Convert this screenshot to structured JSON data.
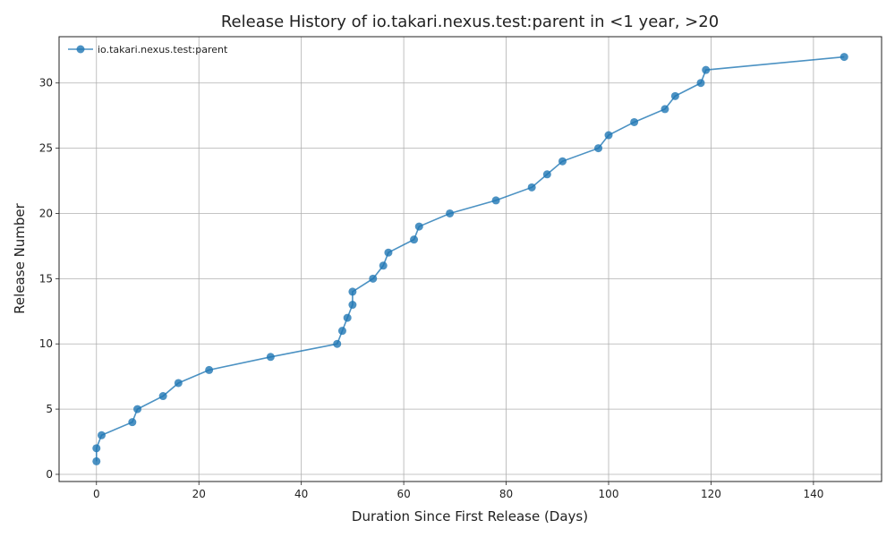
{
  "chart_data": {
    "type": "line",
    "title": "Release History of io.takari.nexus.test:parent in <1 year, >20",
    "xlabel": "Duration Since First Release (Days)",
    "ylabel": "Release Number",
    "xlim": [
      -7.3,
      153.3
    ],
    "ylim": [
      -0.55,
      33.55
    ],
    "xticks": [
      0,
      20,
      40,
      60,
      80,
      100,
      120,
      140
    ],
    "yticks": [
      0,
      5,
      10,
      15,
      20,
      25,
      30
    ],
    "grid": true,
    "legend_position": "top-left",
    "series": [
      {
        "name": "io.takari.nexus.test:parent",
        "color": "#1f77b4",
        "marker": "circle",
        "x": [
          0,
          0,
          1,
          7,
          8,
          13,
          16,
          22,
          34,
          47,
          48,
          49,
          50,
          50,
          54,
          56,
          57,
          62,
          63,
          69,
          78,
          85,
          88,
          91,
          98,
          100,
          105,
          111,
          113,
          118,
          119,
          146
        ],
        "y": [
          1,
          2,
          3,
          4,
          5,
          6,
          7,
          8,
          9,
          10,
          11,
          12,
          13,
          14,
          15,
          16,
          17,
          18,
          19,
          20,
          21,
          22,
          23,
          24,
          25,
          26,
          27,
          28,
          29,
          30,
          31,
          32
        ]
      }
    ]
  }
}
